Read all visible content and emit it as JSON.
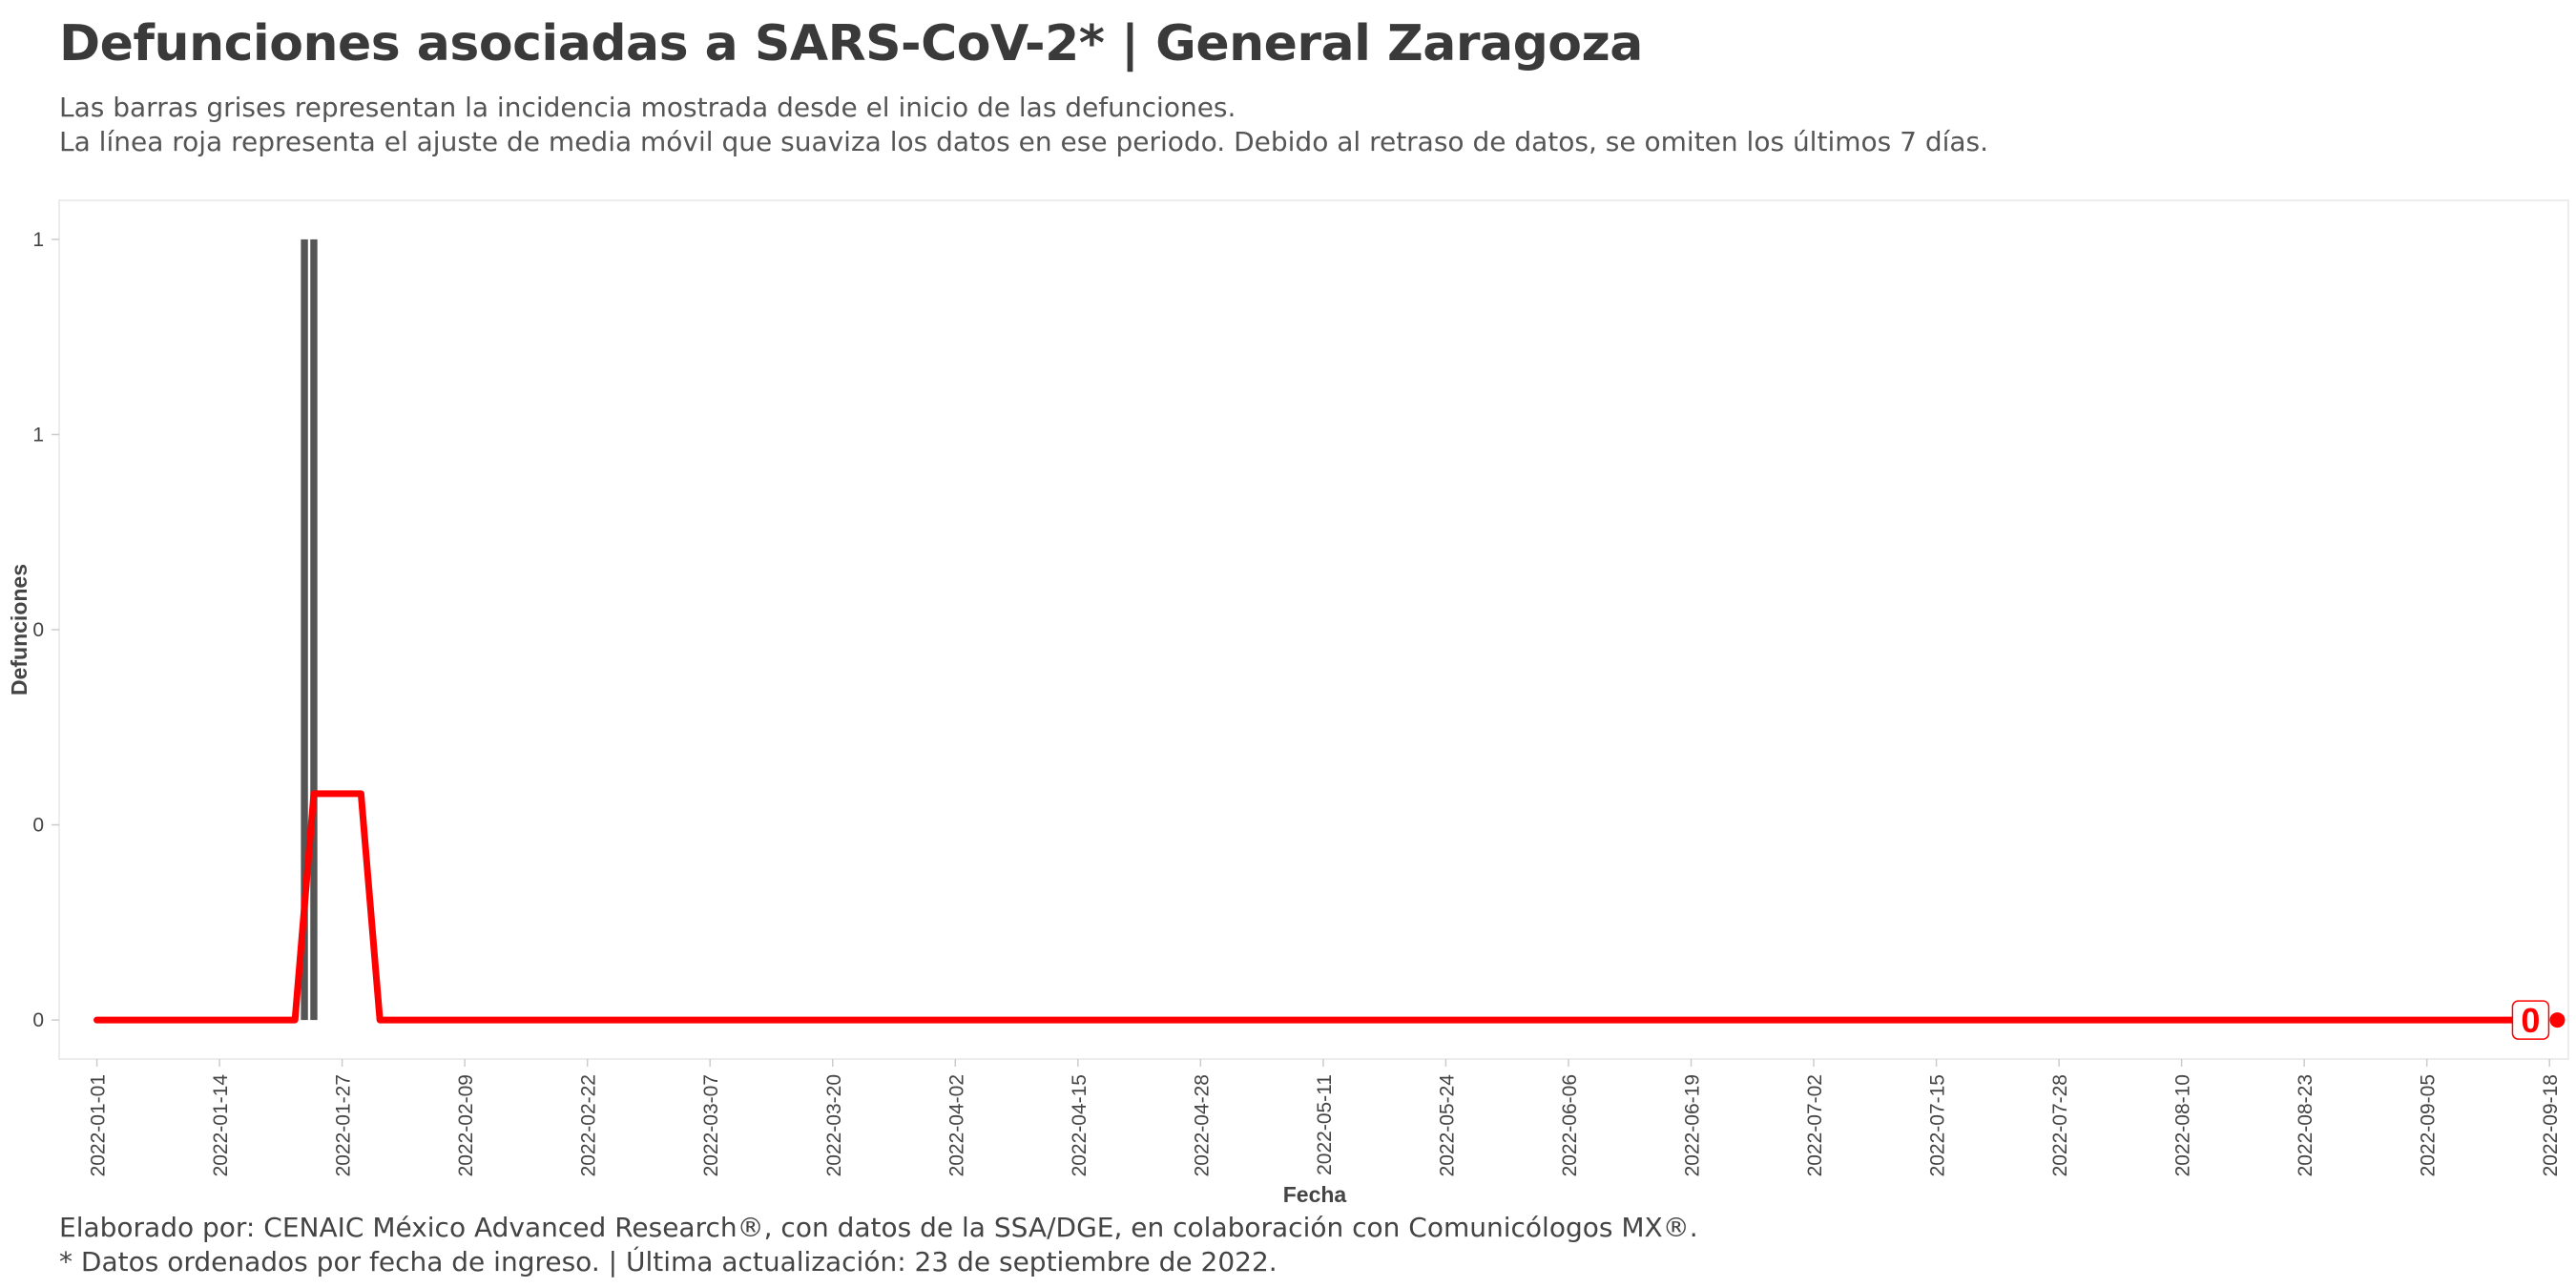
{
  "header": {
    "title": "Defunciones asociadas a SARS-CoV-2* | General Zaragoza",
    "subtitle_line1": "Las barras grises representan la incidencia mostrada desde el inicio de las defunciones.",
    "subtitle_line2": "La línea roja representa el ajuste de media móvil que suaviza los datos en ese periodo. Debido al retraso de datos, se omiten los últimos 7 días."
  },
  "caption": {
    "line1": "Elaborado por: CENAIC México Advanced Research®, con datos de la SSA/DGE, en colaboración con Comunicólogos MX®.",
    "line2": "* Datos ordenados por fecha de ingreso. | Última actualización: 23 de septiembre de 2022."
  },
  "colors": {
    "bars": "#555555",
    "line": "#ff0000",
    "grid": "#e6e6e6",
    "text": "#3d3d3d"
  },
  "chart_data": {
    "type": "bar+line",
    "xlabel": "Fecha",
    "ylabel": "Defunciones",
    "x_start": "2022-01-01",
    "x_end": "2022-09-18",
    "xlim": [
      "2021-12-28",
      "2022-09-20"
    ],
    "ylim": [
      -0.05,
      1.05
    ],
    "x_ticks": [
      "2022-01-01",
      "2022-01-14",
      "2022-01-27",
      "2022-02-09",
      "2022-02-22",
      "2022-03-07",
      "2022-03-20",
      "2022-04-02",
      "2022-04-15",
      "2022-04-28",
      "2022-05-11",
      "2022-05-24",
      "2022-06-06",
      "2022-06-19",
      "2022-07-02",
      "2022-07-15",
      "2022-07-28",
      "2022-08-10",
      "2022-08-23",
      "2022-09-05",
      "2022-09-18"
    ],
    "y_ticks": [
      {
        "value": 0,
        "label": "0"
      },
      {
        "value": 0.25,
        "label": "0"
      },
      {
        "value": 0.5,
        "label": "0"
      },
      {
        "value": 0.75,
        "label": "1"
      },
      {
        "value": 1,
        "label": "1"
      }
    ],
    "bars": [
      {
        "date": "2022-01-23",
        "value": 1
      },
      {
        "date": "2022-01-24",
        "value": 1
      }
    ],
    "series": [
      {
        "type": "line",
        "points": [
          {
            "date": "2022-01-01",
            "value": 0
          },
          {
            "date": "2022-01-22",
            "value": 0
          },
          {
            "date": "2022-01-24",
            "value": 0.29
          },
          {
            "date": "2022-01-29",
            "value": 0.29
          },
          {
            "date": "2022-01-31",
            "value": 0
          },
          {
            "date": "2022-09-16",
            "value": 0
          }
        ]
      }
    ],
    "end_label": {
      "date": "2022-09-16",
      "value": 0,
      "text": "0"
    },
    "grid": false
  }
}
